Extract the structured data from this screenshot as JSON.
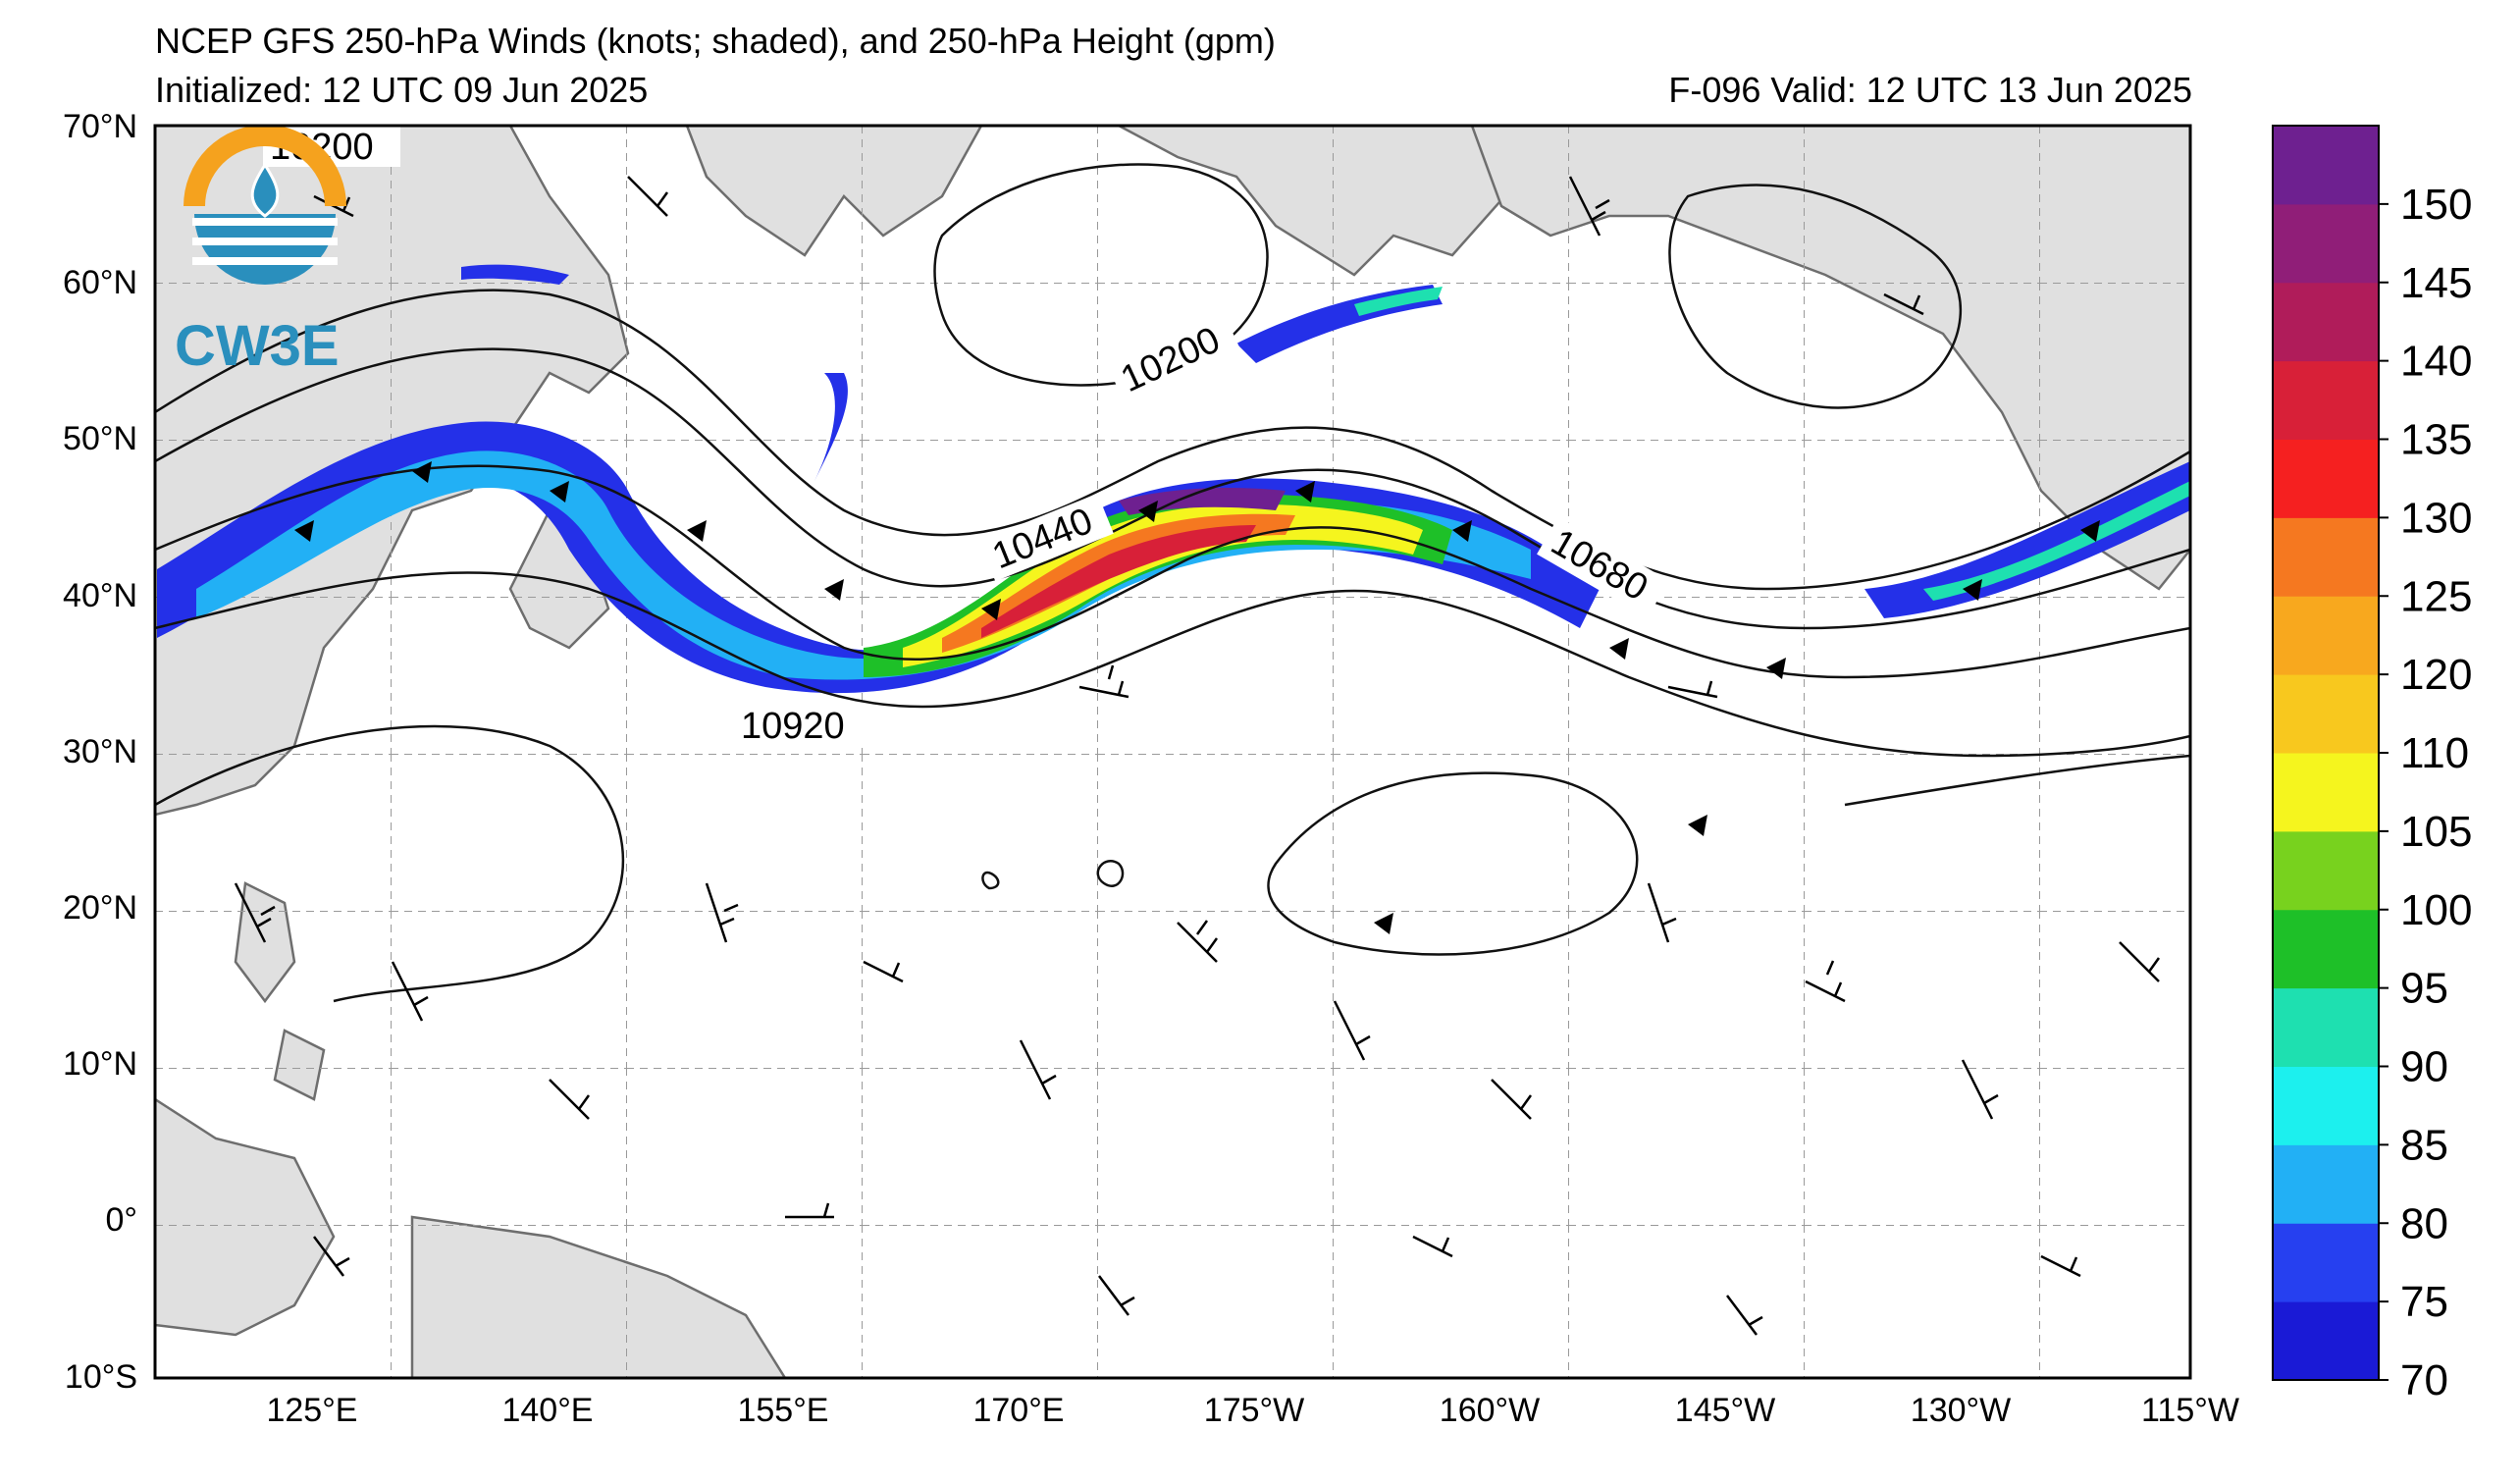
{
  "title": {
    "line1": "NCEP GFS 250-hPa Winds (knots; shaded), and 250-hPa Height (gpm)",
    "initialized": "Initialized: 12 UTC 09 Jun 2025",
    "valid": "F-096  Valid: 12 UTC 13 Jun 2025"
  },
  "logo": {
    "text": "CW3E"
  },
  "map": {
    "lat_labels": [
      "70°N",
      "60°N",
      "50°N",
      "40°N",
      "30°N",
      "20°N",
      "10°N",
      "0°",
      "10°S"
    ],
    "lon_labels": [
      "125°E",
      "140°E",
      "155°E",
      "170°E",
      "175°W",
      "160°W",
      "145°W",
      "130°W",
      "115°W"
    ],
    "contour_labels": [
      "10200",
      "10200",
      "10440",
      "10680",
      "10920"
    ]
  },
  "colorbar": {
    "labels": [
      "70",
      "75",
      "80",
      "85",
      "90",
      "95",
      "100",
      "105",
      "110",
      "120",
      "125",
      "130",
      "135",
      "140",
      "145",
      "150"
    ],
    "colors": [
      "#1a1ad6",
      "#2640f0",
      "#22b0f5",
      "#1cf0ee",
      "#1ee0b0",
      "#1ec028",
      "#78d21e",
      "#f5f51e",
      "#f8c81e",
      "#f8a81e",
      "#f57820",
      "#f52020",
      "#d82038",
      "#b01c5a",
      "#901e78",
      "#6e2090"
    ]
  }
}
